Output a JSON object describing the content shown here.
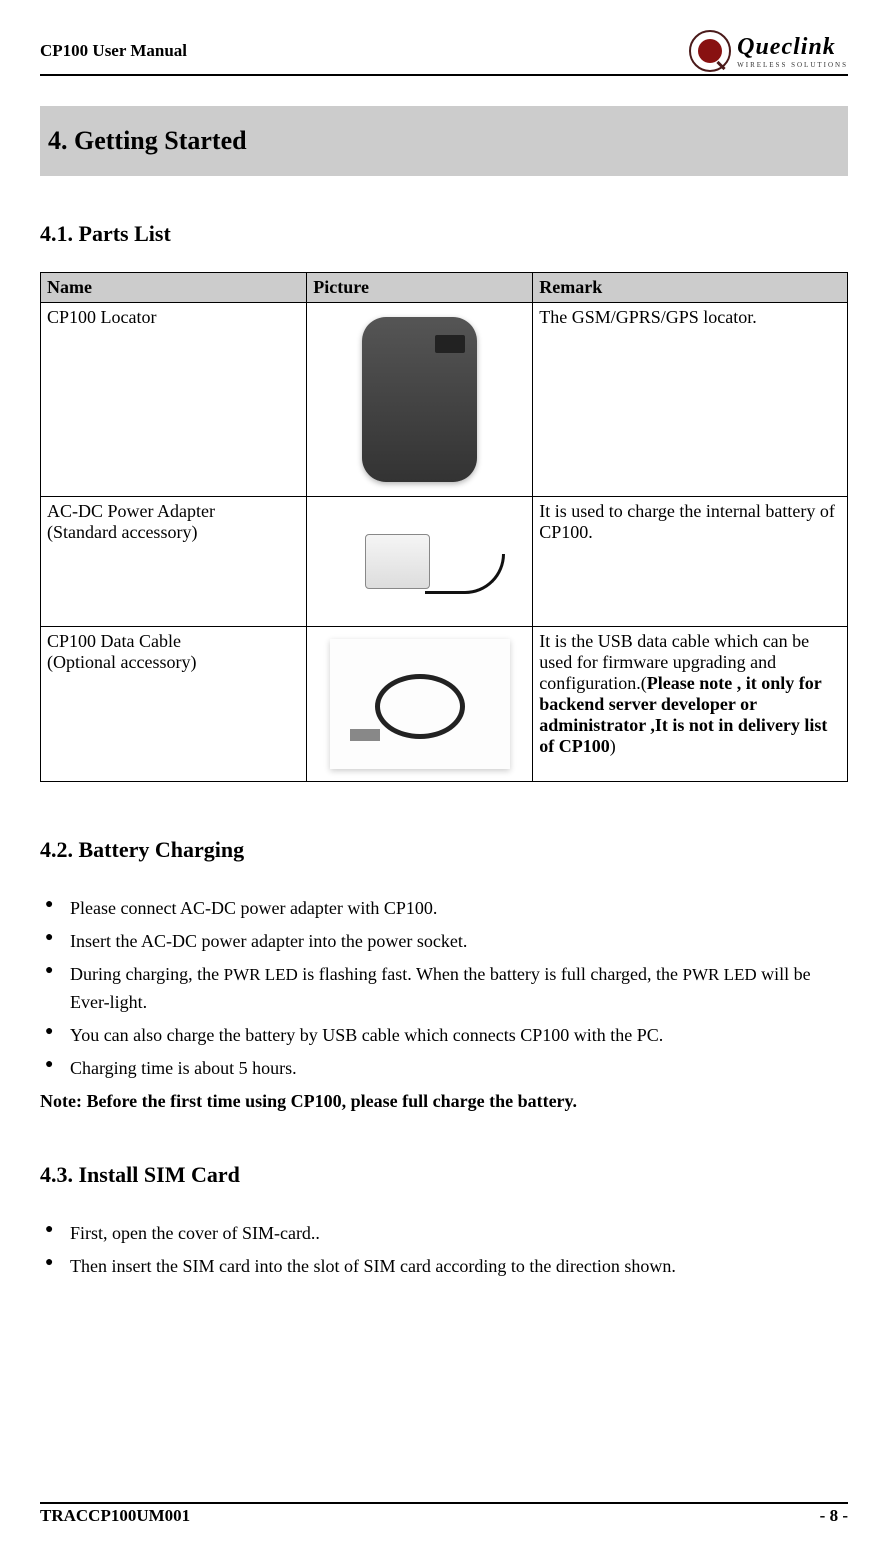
{
  "header": {
    "doc_title": "CP100 User Manual",
    "logo_brand": "Queclink",
    "logo_sub": "WIRELESS SOLUTIONS"
  },
  "section4": {
    "title": "4. Getting Started"
  },
  "section41": {
    "title": "4.1. Parts List",
    "table": {
      "columns": [
        "Name",
        "Picture",
        "Remark"
      ],
      "rows": [
        {
          "name": "CP100 Locator",
          "remark": "The GSM/GPRS/GPS locator."
        },
        {
          "name_line1": "AC-DC Power Adapter",
          "name_line2": "(Standard accessory)",
          "remark": "It is used to charge the internal battery of CP100."
        },
        {
          "name_line1": "CP100 Data Cable",
          "name_line2": "(Optional accessory)",
          "remark_pre": "It is the USB data cable which can be used for firmware upgrading and configuration.(",
          "remark_bold": "Please note , it only for backend server developer or administrator ,It is not in delivery list of CP100",
          "remark_post": ")"
        }
      ]
    }
  },
  "section42": {
    "title": "4.2. Battery Charging",
    "items": {
      "i1": "Please connect AC-DC power adapter with CP100.",
      "i2": "Insert the AC-DC power adapter into the power socket.",
      "i3_pre": "During charging, the ",
      "i3_sc1": "PWR LED",
      "i3_mid": " is flashing fast. When the battery is full charged, the ",
      "i3_sc2": "PWR LED",
      "i3_post": " will be Ever-light.",
      "i4": "You can also charge the battery by USB cable which connects CP100 with the PC.",
      "i5": "Charging time is about 5 hours."
    },
    "note": "Note: Before the first time using CP100, please full charge the battery."
  },
  "section43": {
    "title": "4.3. Install SIM Card",
    "items": {
      "i1": "First, open the cover of SIM-card..",
      "i2": "Then insert the SIM card into the slot of SIM card according to the direction shown."
    }
  },
  "footer": {
    "doc_id": "TRACCP100UM001",
    "page": "- 8 -"
  }
}
